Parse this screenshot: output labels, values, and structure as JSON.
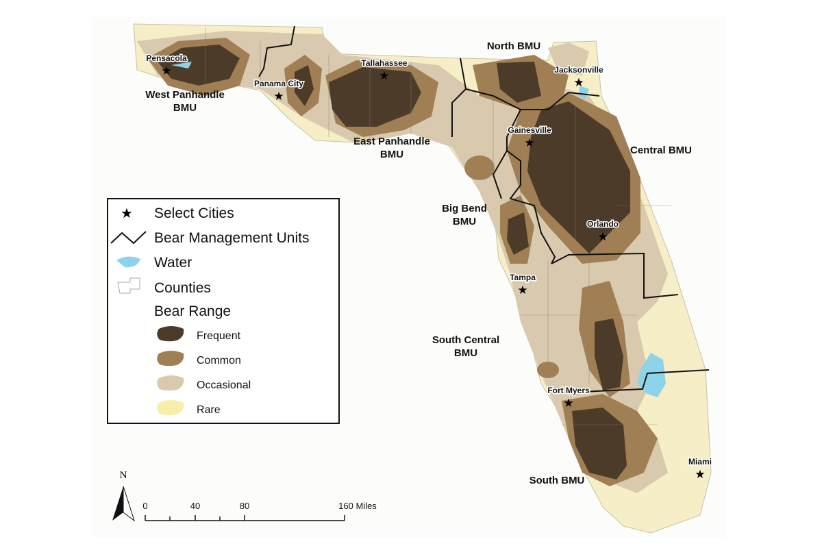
{
  "cities": [
    "Pensacola",
    "Panama City",
    "Tallahassee",
    "Jacksonville",
    "Gainesville",
    "Orlando",
    "Tampa",
    "Fort Myers",
    "Miami"
  ],
  "bmu_labels": [
    {
      "lines": [
        "North BMU"
      ]
    },
    {
      "lines": [
        "West Panhandle",
        "BMU"
      ]
    },
    {
      "lines": [
        "East Panhandle",
        "BMU"
      ]
    },
    {
      "lines": [
        "Central BMU"
      ]
    },
    {
      "lines": [
        "Big Bend",
        "BMU"
      ]
    },
    {
      "lines": [
        "South Central",
        "BMU"
      ]
    },
    {
      "lines": [
        "South BMU"
      ]
    }
  ],
  "legend": {
    "items": [
      "Select Cities",
      "Bear Management Units",
      "Water",
      "Counties"
    ],
    "heading": "Bear Range",
    "range_items": [
      "Frequent",
      "Common",
      "Occasional",
      "Rare"
    ]
  },
  "north_arrow": "N",
  "scale_bar": [
    "0",
    "40",
    "80",
    "160 Miles"
  ]
}
